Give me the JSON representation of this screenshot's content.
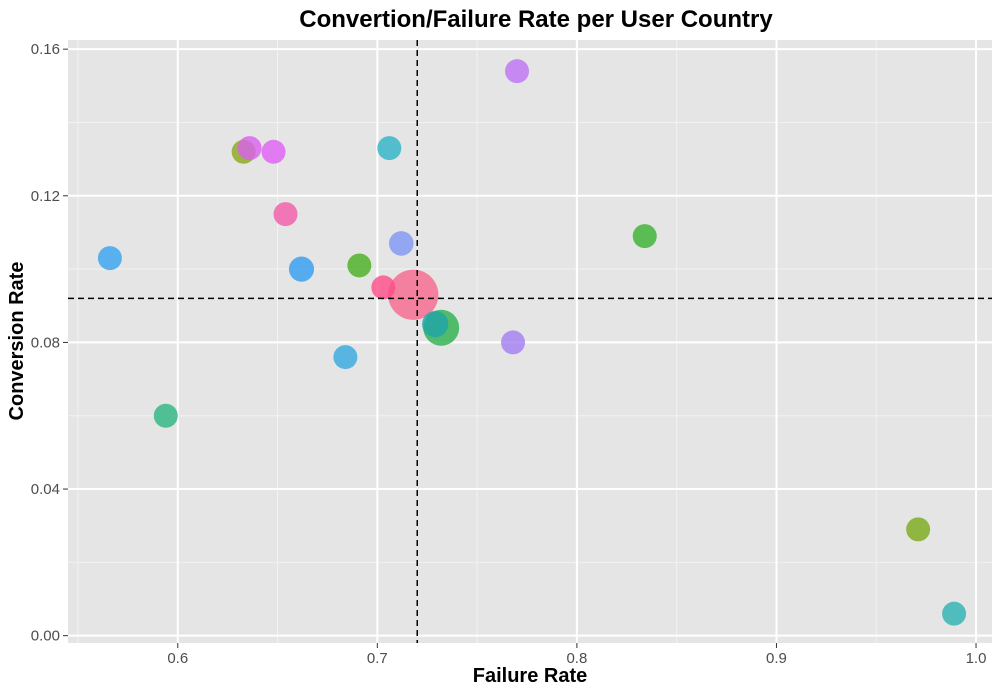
{
  "colors": {
    "panel_background": "#e5e5e5",
    "grid_major": "#ffffff",
    "grid_minor": "#f2f2f2",
    "reference_line": "#000000"
  },
  "chart_data": {
    "type": "scatter",
    "title": "Convertion/Failure Rate per User Country",
    "xlabel": "Failure Rate",
    "ylabel": "Conversion Rate",
    "xlim": [
      0.545,
      1.008
    ],
    "ylim": [
      -0.002,
      0.1625
    ],
    "x_ticks": [
      0.6,
      0.7,
      0.8,
      0.9,
      1.0
    ],
    "x_tick_labels": [
      "0.6",
      "0.7",
      "0.8",
      "0.9",
      "1.0"
    ],
    "y_ticks": [
      0.0,
      0.04,
      0.08,
      0.12,
      0.16
    ],
    "y_tick_labels": [
      "0.00",
      "0.04",
      "0.08",
      "0.12",
      "0.16"
    ],
    "grid": true,
    "legend": "none",
    "reference_lines": {
      "x": 0.72,
      "y": 0.092,
      "style": "dashed"
    },
    "point_opacity": 0.8,
    "bubble_size": "relative",
    "points": [
      {
        "x": 0.566,
        "y": 0.103,
        "size": 1.0,
        "color": "#35a2f0"
      },
      {
        "x": 0.594,
        "y": 0.06,
        "size": 1.0,
        "color": "#2bb67f"
      },
      {
        "x": 0.633,
        "y": 0.132,
        "size": 1.0,
        "color": "#8aa71a"
      },
      {
        "x": 0.636,
        "y": 0.133,
        "size": 1.0,
        "color": "#db60f0"
      },
      {
        "x": 0.648,
        "y": 0.132,
        "size": 1.0,
        "color": "#dd5ff2"
      },
      {
        "x": 0.654,
        "y": 0.115,
        "size": 1.0,
        "color": "#f45aa9"
      },
      {
        "x": 0.662,
        "y": 0.1,
        "size": 1.1,
        "color": "#2f9ef0"
      },
      {
        "x": 0.684,
        "y": 0.076,
        "size": 1.0,
        "color": "#34a8de"
      },
      {
        "x": 0.691,
        "y": 0.101,
        "size": 1.0,
        "color": "#47af1f"
      },
      {
        "x": 0.703,
        "y": 0.095,
        "size": 1.0,
        "color": "#ff4b88"
      },
      {
        "x": 0.706,
        "y": 0.133,
        "size": 1.0,
        "color": "#2db4c7"
      },
      {
        "x": 0.712,
        "y": 0.107,
        "size": 1.05,
        "color": "#7d96f5"
      },
      {
        "x": 0.729,
        "y": 0.085,
        "size": 1.2,
        "color": "#1fa5a8"
      },
      {
        "x": 0.732,
        "y": 0.084,
        "size": 2.0,
        "color": "#2ab04c"
      },
      {
        "x": 0.718,
        "y": 0.093,
        "size": 3.9,
        "color": "#f8668e"
      },
      {
        "x": 0.768,
        "y": 0.08,
        "size": 1.0,
        "color": "#a27df3"
      },
      {
        "x": 0.77,
        "y": 0.154,
        "size": 1.0,
        "color": "#bd72f4"
      },
      {
        "x": 0.834,
        "y": 0.109,
        "size": 1.0,
        "color": "#38b22e"
      },
      {
        "x": 0.971,
        "y": 0.029,
        "size": 1.0,
        "color": "#7aaa19"
      },
      {
        "x": 0.989,
        "y": 0.006,
        "size": 1.0,
        "color": "#2ab2b2"
      }
    ]
  }
}
